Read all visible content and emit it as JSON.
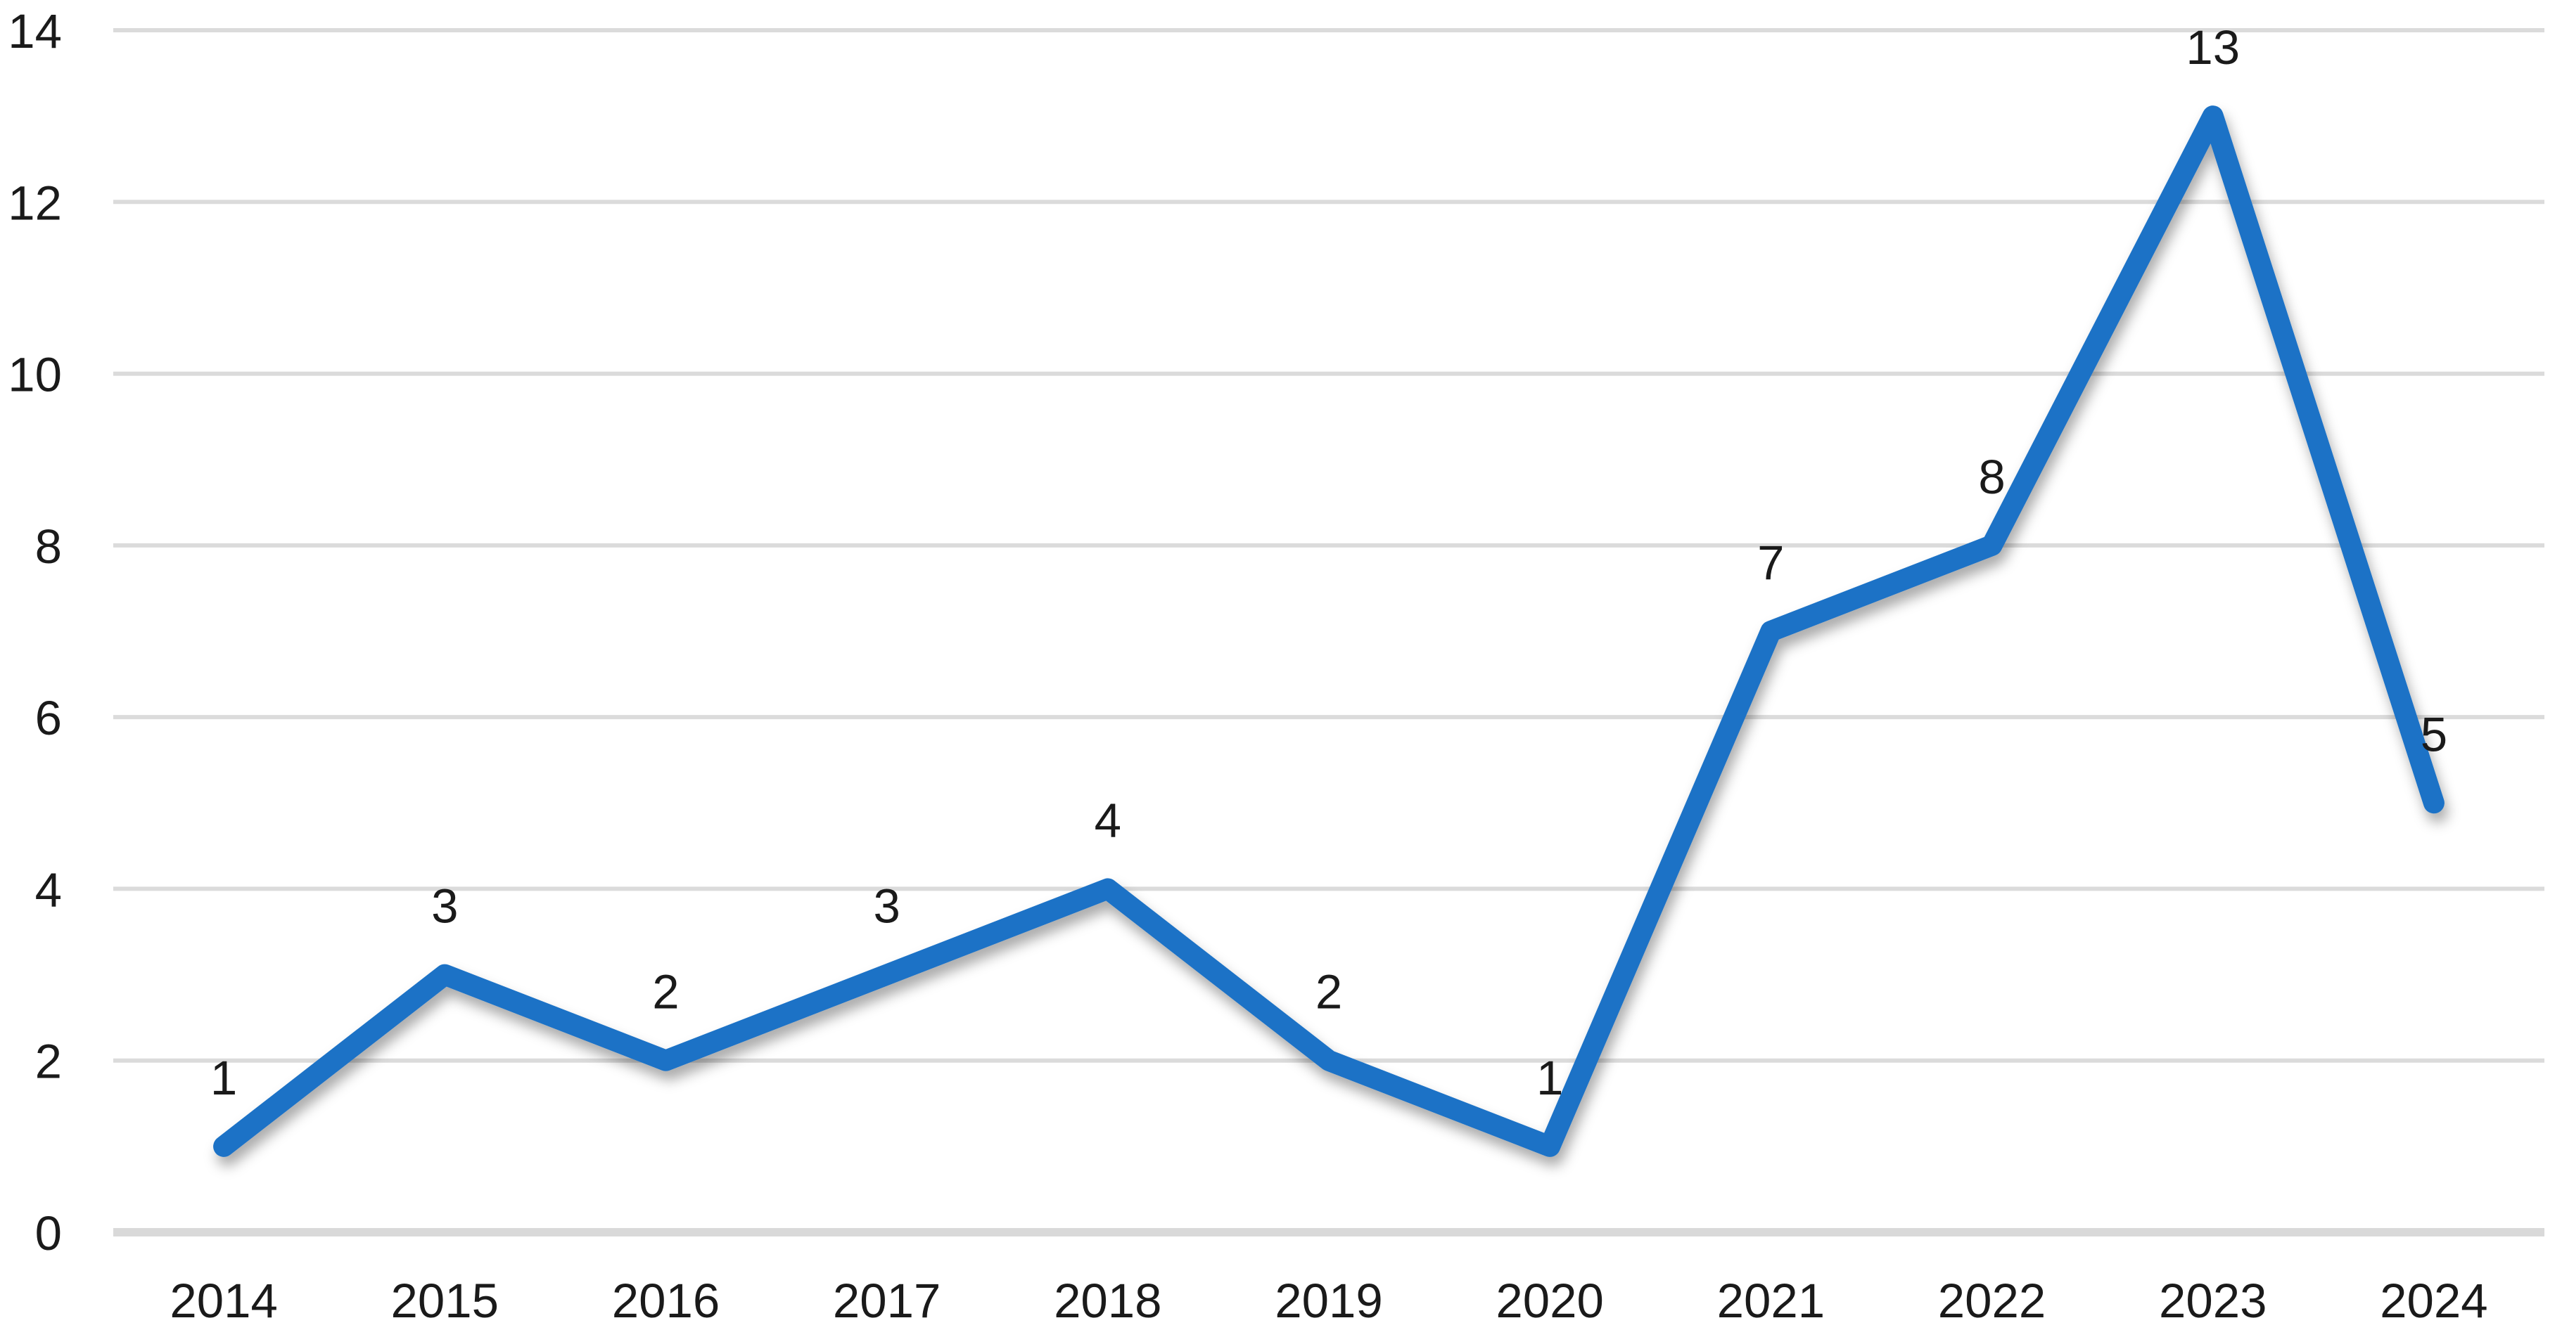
{
  "chart_data": {
    "type": "line",
    "title": "",
    "xlabel": "",
    "ylabel": "",
    "categories": [
      "2014",
      "2015",
      "2016",
      "2017",
      "2018",
      "2019",
      "2020",
      "2021",
      "2022",
      "2023",
      "2024"
    ],
    "series": [
      {
        "name": "",
        "values": [
          1,
          3,
          2,
          3,
          4,
          2,
          1,
          7,
          8,
          13,
          5
        ]
      }
    ],
    "data_labels": [
      "1",
      "3",
      "2",
      "3",
      "4",
      "2",
      "1",
      "7",
      "8",
      "13",
      "5"
    ],
    "yticks": [
      0,
      2,
      4,
      6,
      8,
      10,
      12,
      14
    ],
    "ytick_labels": [
      "0",
      "2",
      "4",
      "6",
      "8",
      "10",
      "12",
      "14"
    ],
    "ylim": [
      0,
      14
    ],
    "grid": true,
    "legend": "none",
    "colors": {
      "line": "#1C72C6",
      "gridline": "#DBDBDB",
      "axis_line": "#D9D9D9",
      "text": "#1A1A1A"
    }
  }
}
